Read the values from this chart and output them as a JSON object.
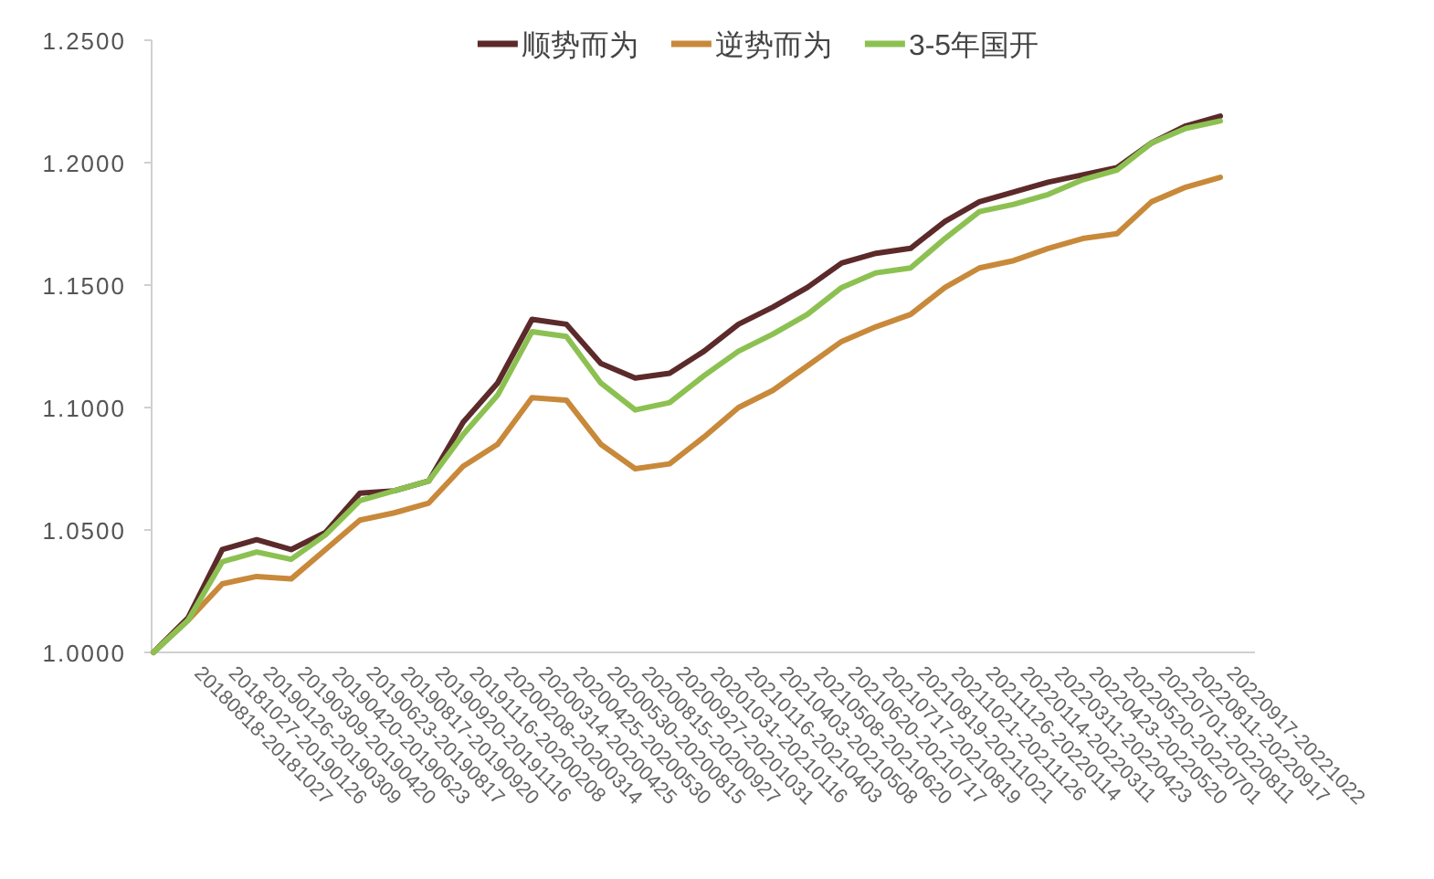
{
  "chart_data": {
    "type": "line",
    "legend": "top",
    "grid": false,
    "marker": "none",
    "line_style": "solid",
    "categories": [
      null,
      "20180818-20181027",
      "20181027-20190126",
      "20190126-20190309",
      "20190309-20190420",
      "20190420-20190623",
      "20190623-20190817",
      "20190817-20190920",
      "20190920-20191116",
      "20191116-20200208",
      "20200208-20200314",
      "20200314-20200425",
      "20200425-20200530",
      "20200530-20200815",
      "20200815-20200927",
      "20200927-20201031",
      "20201031-20210116",
      "20210116-20210403",
      "20210403-20210508",
      "20210508-20210620",
      "20210620-20210717",
      "20210717-20210819",
      "20210819-20211021",
      "20211021-20211126",
      "20211126-20220114",
      "20220114-20220311",
      "20220311-20220423",
      "20220423-20220520",
      "20220520-20220701",
      "20220701-20220811",
      "20220811-20220917",
      "20220917-20221022"
    ],
    "ylim": [
      1.0,
      1.25
    ],
    "yticks": [
      {
        "value": 1.0,
        "label": "1.0000"
      },
      {
        "value": 1.05,
        "label": "1.0500"
      },
      {
        "value": 1.1,
        "label": "1.1000"
      },
      {
        "value": 1.15,
        "label": "1.1500"
      },
      {
        "value": 1.2,
        "label": "1.2000"
      },
      {
        "value": 1.25,
        "label": "1.2500"
      }
    ],
    "series": [
      {
        "name": "顺势而为",
        "color": "#5c2a2a",
        "values": [
          1.0,
          1.014,
          1.042,
          1.046,
          1.042,
          1.049,
          1.065,
          1.066,
          1.07,
          1.094,
          1.11,
          1.136,
          1.134,
          1.118,
          1.112,
          1.114,
          1.123,
          1.134,
          1.141,
          1.149,
          1.159,
          1.163,
          1.165,
          1.176,
          1.184,
          1.188,
          1.192,
          1.195,
          1.198,
          1.208,
          1.215,
          1.219
        ]
      },
      {
        "name": "逆势而为",
        "color": "#c8893a",
        "values": [
          1.0,
          1.013,
          1.028,
          1.031,
          1.03,
          1.042,
          1.054,
          1.057,
          1.061,
          1.076,
          1.085,
          1.104,
          1.103,
          1.085,
          1.075,
          1.077,
          1.088,
          1.1,
          1.107,
          1.117,
          1.127,
          1.133,
          1.138,
          1.149,
          1.157,
          1.16,
          1.165,
          1.169,
          1.171,
          1.184,
          1.19,
          1.194
        ]
      },
      {
        "name": "3-5年国开",
        "color": "#8cc152",
        "values": [
          1.0,
          1.013,
          1.037,
          1.041,
          1.038,
          1.048,
          1.062,
          1.066,
          1.07,
          1.089,
          1.105,
          1.131,
          1.129,
          1.11,
          1.099,
          1.102,
          1.113,
          1.123,
          1.13,
          1.138,
          1.149,
          1.155,
          1.157,
          1.169,
          1.18,
          1.183,
          1.187,
          1.193,
          1.197,
          1.208,
          1.214,
          1.217
        ]
      }
    ]
  }
}
